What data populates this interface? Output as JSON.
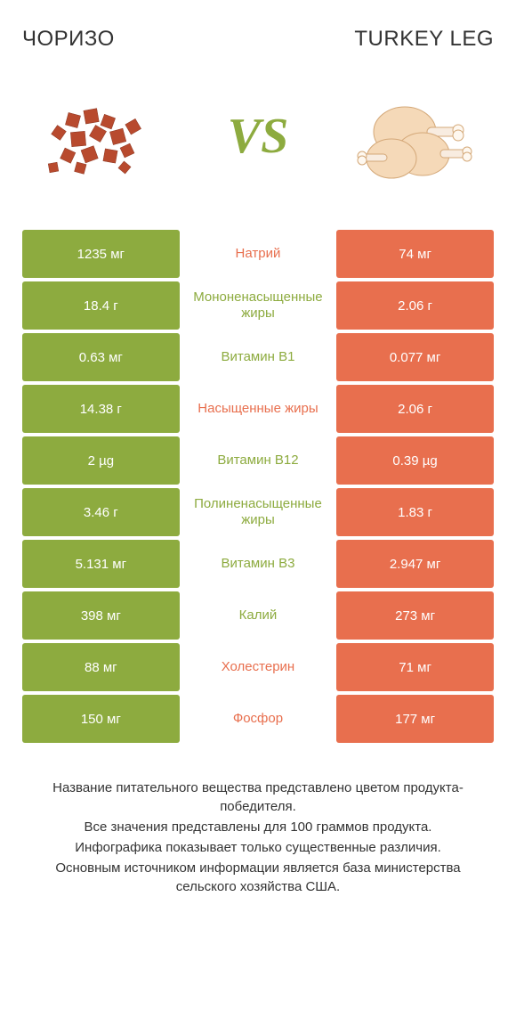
{
  "colors": {
    "green": "#8dab3f",
    "orange": "#e86f4e",
    "white": "#ffffff",
    "text": "#333333"
  },
  "header": {
    "left": "ЧОРИЗО",
    "right": "TURKEY LEG",
    "vs": "VS"
  },
  "rows": [
    {
      "left": "1235 мг",
      "mid": "Натрий",
      "right": "74 мг",
      "leftColor": "#8dab3f",
      "midColor": "#e86f4e",
      "rightColor": "#e86f4e"
    },
    {
      "left": "18.4 г",
      "mid": "Мононенасыщенные жиры",
      "right": "2.06 г",
      "leftColor": "#8dab3f",
      "midColor": "#8dab3f",
      "rightColor": "#e86f4e"
    },
    {
      "left": "0.63 мг",
      "mid": "Витамин B1",
      "right": "0.077 мг",
      "leftColor": "#8dab3f",
      "midColor": "#8dab3f",
      "rightColor": "#e86f4e"
    },
    {
      "left": "14.38 г",
      "mid": "Насыщенные жиры",
      "right": "2.06 г",
      "leftColor": "#8dab3f",
      "midColor": "#e86f4e",
      "rightColor": "#e86f4e"
    },
    {
      "left": "2 µg",
      "mid": "Витамин B12",
      "right": "0.39 µg",
      "leftColor": "#8dab3f",
      "midColor": "#8dab3f",
      "rightColor": "#e86f4e"
    },
    {
      "left": "3.46 г",
      "mid": "Полиненасыщенные жиры",
      "right": "1.83 г",
      "leftColor": "#8dab3f",
      "midColor": "#8dab3f",
      "rightColor": "#e86f4e"
    },
    {
      "left": "5.131 мг",
      "mid": "Витамин B3",
      "right": "2.947 мг",
      "leftColor": "#8dab3f",
      "midColor": "#8dab3f",
      "rightColor": "#e86f4e"
    },
    {
      "left": "398 мг",
      "mid": "Калий",
      "right": "273 мг",
      "leftColor": "#8dab3f",
      "midColor": "#8dab3f",
      "rightColor": "#e86f4e"
    },
    {
      "left": "88 мг",
      "mid": "Холестерин",
      "right": "71 мг",
      "leftColor": "#8dab3f",
      "midColor": "#e86f4e",
      "rightColor": "#e86f4e"
    },
    {
      "left": "150 мг",
      "mid": "Фосфор",
      "right": "177 мг",
      "leftColor": "#8dab3f",
      "midColor": "#e86f4e",
      "rightColor": "#e86f4e"
    }
  ],
  "footer": {
    "l1": "Название питательного вещества представлено цветом продукта-победителя.",
    "l2": "Все значения представлены для 100 граммов продукта.",
    "l3": "Инфографика показывает только существенные различия.",
    "l4": "Основным источником информации является база министерства сельского хозяйства США."
  }
}
